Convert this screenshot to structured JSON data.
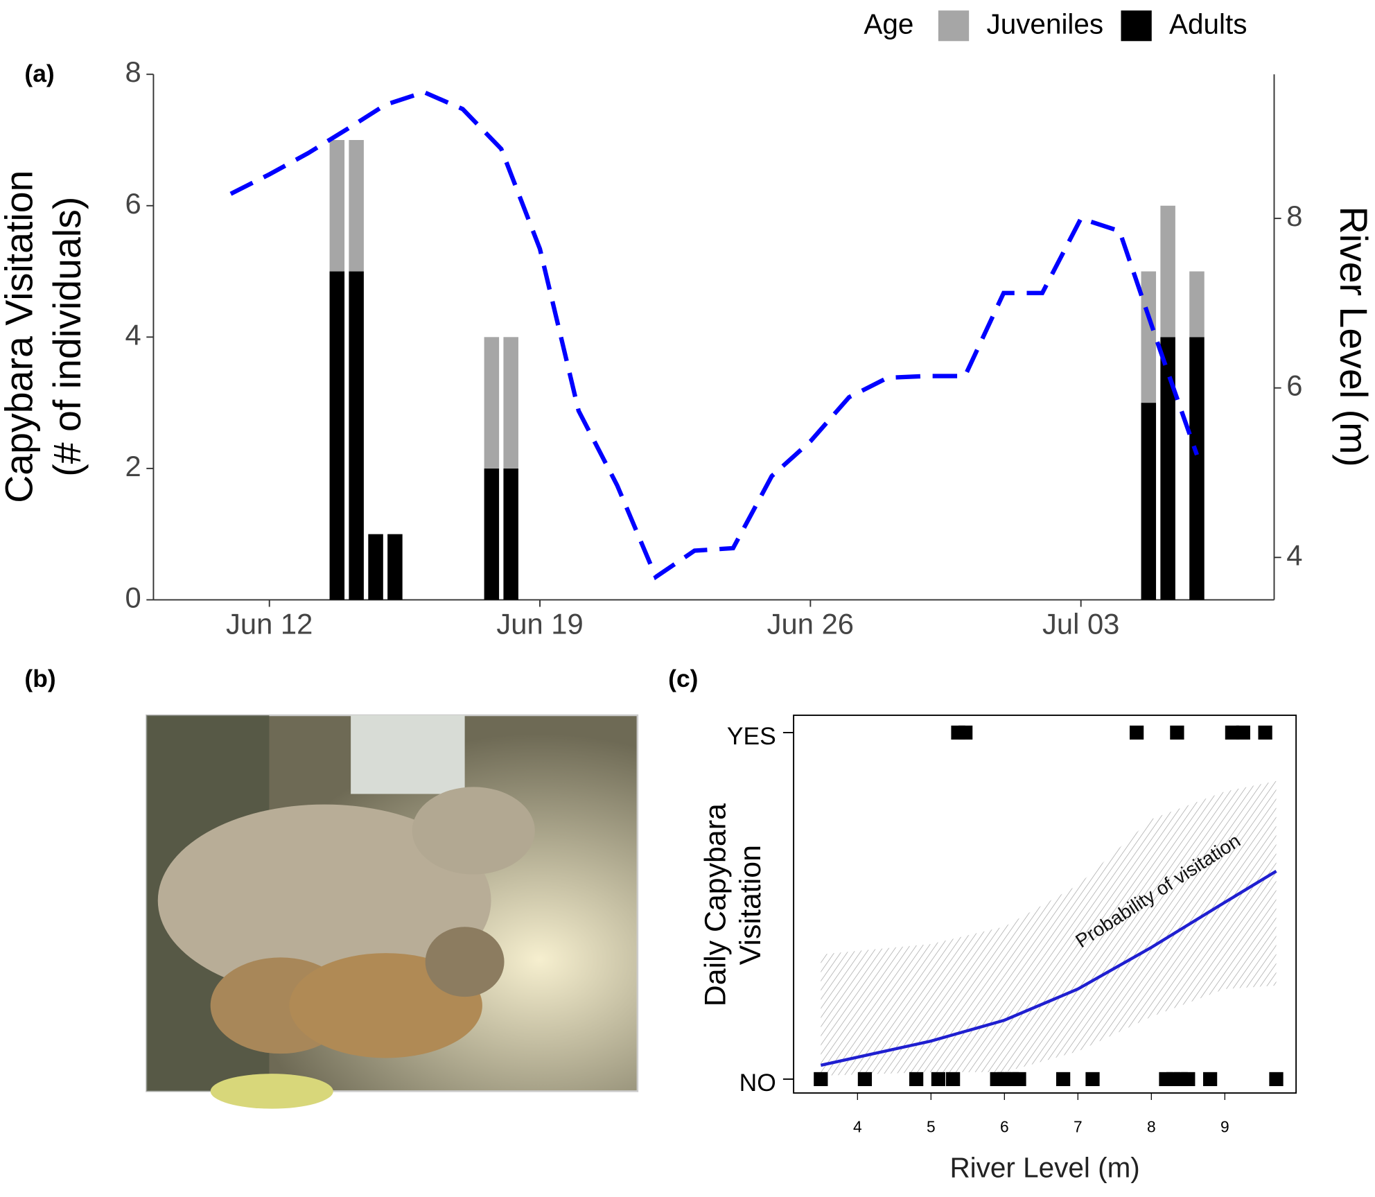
{
  "chart_data": [
    {
      "type": "bar",
      "panel": "(a)",
      "stacked": true,
      "y_label": [
        "Capybara Visitation",
        "(# of individuals)"
      ],
      "y2_label": "River Level (m)",
      "legend_title": "Age",
      "legend_position": "top-right",
      "x": [
        "Jun 14",
        "Jun 14",
        "Jun 15",
        "Jun 15",
        "Jun 18",
        "Jun 18",
        "Jul 05",
        "Jul 05",
        "Jul 06"
      ],
      "series": [
        {
          "name": "Juveniles",
          "color": "#a6a6a6",
          "values": [
            2,
            2,
            0,
            0,
            2,
            2,
            2,
            2,
            1
          ]
        },
        {
          "name": "Adults",
          "color": "#000000",
          "values": [
            5,
            5,
            1,
            1,
            2,
            2,
            3,
            4,
            4
          ]
        }
      ],
      "line": {
        "axis": "y2",
        "color": "#0000ff",
        "x": [
          "Jun 11",
          "Jun 12",
          "Jun 13",
          "Jun 14",
          "Jun 15",
          "Jun 16",
          "Jun 17",
          "Jun 18",
          "Jun 19",
          "Jun 20",
          "Jun 21",
          "Jun 22",
          "Jun 23",
          "Jun 24",
          "Jun 25",
          "Jun 26",
          "Jun 27",
          "Jun 28",
          "Jun 29",
          "Jun 30",
          "Jul 01",
          "Jul 02",
          "Jul 03",
          "Jul 04",
          "Jul 05",
          "Jul 06"
        ],
        "values": [
          8.29,
          8.52,
          8.77,
          9.05,
          9.34,
          9.49,
          9.29,
          8.82,
          7.64,
          5.73,
          4.85,
          3.77,
          4.08,
          4.11,
          4.96,
          5.37,
          5.89,
          6.12,
          6.14,
          6.14,
          7.12,
          7.12,
          8.0,
          7.85,
          6.51,
          5.21
        ]
      },
      "xlim": [
        "Jun 9",
        "Jul 8"
      ],
      "xticks": [
        "Jun 12",
        "Jun 19",
        "Jun 26",
        "Jul 03"
      ],
      "ylim": [
        0,
        8
      ],
      "yticks": [
        0,
        2,
        4,
        6,
        8
      ],
      "y2lim": [
        3.5,
        9.7
      ],
      "y2ticks": [
        4,
        6,
        8
      ]
    },
    {
      "type": "scatter",
      "panel": "(c)",
      "x_label": "River Level (m)",
      "y_label": [
        "Daily Capybara",
        "Visitation"
      ],
      "x": [
        5.37,
        5.47,
        7.8,
        8.35,
        9.1,
        9.25,
        9.55,
        3.5,
        4.1,
        4.8,
        5.1,
        5.3,
        5.9,
        6.0,
        6.1,
        6.2,
        6.8,
        7.2,
        8.2,
        8.3,
        8.4,
        8.5,
        8.8,
        9.7
      ],
      "values": [
        1,
        1,
        1,
        1,
        1,
        1,
        1,
        0,
        0,
        0,
        0,
        0,
        0,
        0,
        0,
        0,
        0,
        0,
        0,
        0,
        0,
        0,
        0,
        0
      ],
      "color": "#000000",
      "fit": {
        "color": "#1f1fd0",
        "annotation": "Probability of visitation",
        "x": [
          3.5,
          5,
          6,
          7,
          8,
          9,
          9.7
        ],
        "values": [
          0.04,
          0.11,
          0.17,
          0.26,
          0.38,
          0.51,
          0.6
        ],
        "lower": [
          0.01,
          0.02,
          0.02,
          0.08,
          0.18,
          0.26,
          0.27
        ],
        "upper": [
          0.36,
          0.39,
          0.44,
          0.56,
          0.75,
          0.83,
          0.86
        ]
      },
      "xlim": [
        3.13,
        9.97
      ],
      "xticks": [
        4,
        5,
        6,
        7,
        8,
        9
      ],
      "ylim": [
        -0.04,
        1.05
      ],
      "yticks": [
        {
          "value": 0,
          "label": "NO"
        },
        {
          "value": 1,
          "label": "YES"
        }
      ]
    }
  ],
  "photo": {
    "panel": "(b)"
  }
}
